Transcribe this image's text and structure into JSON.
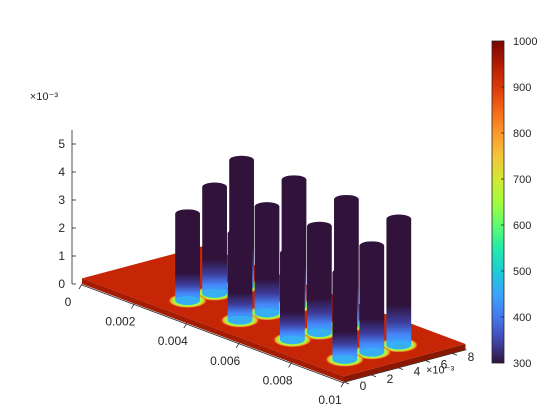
{
  "chart_data": {
    "type": "surface3d",
    "title": "",
    "xlabel": "",
    "ylabel": "",
    "zlabel": "",
    "x_range": [
      0,
      0.01
    ],
    "y_range": [
      0,
      0.009
    ],
    "z_range": [
      0,
      0.0055
    ],
    "x_ticks": [
      0,
      0.002,
      0.004,
      0.006,
      0.008,
      0.01
    ],
    "x_tick_labels": [
      "0",
      "0.002",
      "0.004",
      "0.006",
      "0.008",
      "0.01"
    ],
    "y_ticks": [
      0,
      0.002,
      0.004,
      0.006,
      0.008
    ],
    "y_tick_labels": [
      "0",
      "2",
      "4",
      "6",
      "8"
    ],
    "y_exponent_label": "×10⁻³",
    "z_ticks": [
      0,
      0.001,
      0.002,
      0.003,
      0.004,
      0.005
    ],
    "z_tick_labels": [
      "0",
      "1",
      "2",
      "3",
      "4",
      "5"
    ],
    "z_exponent_label": "×10⁻³",
    "base_plate": {
      "x": [
        0,
        0.01
      ],
      "y": [
        0,
        0.009
      ],
      "thickness": 0.0002,
      "temperature": 960
    },
    "pillar_radius": 0.00045,
    "pillars": [
      {
        "x": 0.003,
        "y": 0.002,
        "height": 0.0031,
        "temperature_top": 300
      },
      {
        "x": 0.005,
        "y": 0.002,
        "height": 0.0031,
        "temperature_top": 300
      },
      {
        "x": 0.007,
        "y": 0.002,
        "height": 0.0031,
        "temperature_top": 300
      },
      {
        "x": 0.009,
        "y": 0.002,
        "height": 0.0031,
        "temperature_top": 300
      },
      {
        "x": 0.003,
        "y": 0.004,
        "height": 0.0038,
        "temperature_top": 300
      },
      {
        "x": 0.005,
        "y": 0.004,
        "height": 0.0038,
        "temperature_top": 300
      },
      {
        "x": 0.007,
        "y": 0.004,
        "height": 0.0038,
        "temperature_top": 300
      },
      {
        "x": 0.009,
        "y": 0.004,
        "height": 0.0038,
        "temperature_top": 300
      },
      {
        "x": 0.003,
        "y": 0.006,
        "height": 0.0045,
        "temperature_top": 300
      },
      {
        "x": 0.005,
        "y": 0.006,
        "height": 0.0045,
        "temperature_top": 300
      },
      {
        "x": 0.007,
        "y": 0.006,
        "height": 0.0045,
        "temperature_top": 300
      },
      {
        "x": 0.009,
        "y": 0.006,
        "height": 0.0045,
        "temperature_top": 300
      }
    ],
    "colorbar": {
      "colormap": "turbo",
      "range": [
        300,
        1000
      ],
      "ticks": [
        300,
        400,
        500,
        600,
        700,
        800,
        900,
        1000
      ],
      "tick_labels": [
        "300",
        "400",
        "500",
        "600",
        "700",
        "800",
        "900",
        "1000"
      ]
    },
    "colors": {
      "pillar_top": "#30123b",
      "pillar_base": "#4686fb",
      "pillar_ring": "#a4fc3c",
      "plate": "#c62506",
      "plate_side": "#a51c02",
      "axis": "#262626"
    }
  }
}
